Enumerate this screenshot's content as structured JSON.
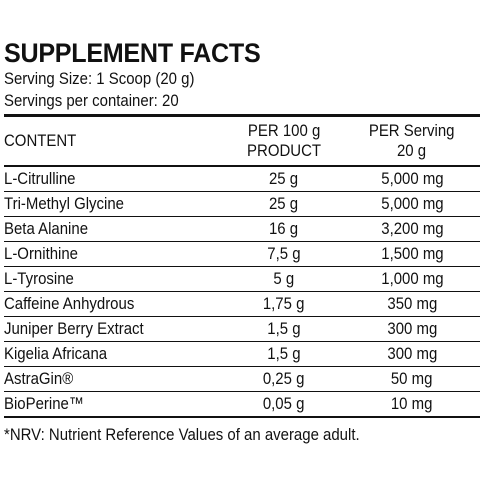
{
  "label": {
    "title": "SUPPLEMENT FACTS",
    "serving_size": "Serving Size: 1 Scoop (20 g)",
    "servings_per_container": "Servings per container: 20",
    "columns": {
      "content": "CONTENT",
      "per100_line1": "PER 100 g",
      "per100_line2": "PRODUCT",
      "perserving_line1": "PER Serving",
      "perserving_line2": "20 g"
    },
    "rows": [
      {
        "name": "L-Citrulline",
        "per100": "25 g",
        "serving": "5,000 mg"
      },
      {
        "name": "Tri-Methyl Glycine",
        "per100": "25 g",
        "serving": "5,000 mg"
      },
      {
        "name": "Beta Alanine",
        "per100": "16 g",
        "serving": "3,200 mg"
      },
      {
        "name": "L-Ornithine",
        "per100": "7,5 g",
        "serving": "1,500 mg"
      },
      {
        "name": "L-Tyrosine",
        "per100": "5 g",
        "serving": "1,000 mg"
      },
      {
        "name": "Caffeine Anhydrous",
        "per100": "1,75 g",
        "serving": "350 mg"
      },
      {
        "name": "Juniper Berry Extract",
        "per100": "1,5 g",
        "serving": "300 mg"
      },
      {
        "name": "Kigelia Africana",
        "per100": "1,5 g",
        "serving": "300 mg"
      },
      {
        "name": "AstraGin®",
        "per100": "0,25 g",
        "serving": "50 mg"
      },
      {
        "name": "BioPerine™",
        "per100": "0,05 g",
        "serving": "10 mg"
      }
    ],
    "footnote": "*NRV: Nutrient Reference Values of an average adult."
  }
}
